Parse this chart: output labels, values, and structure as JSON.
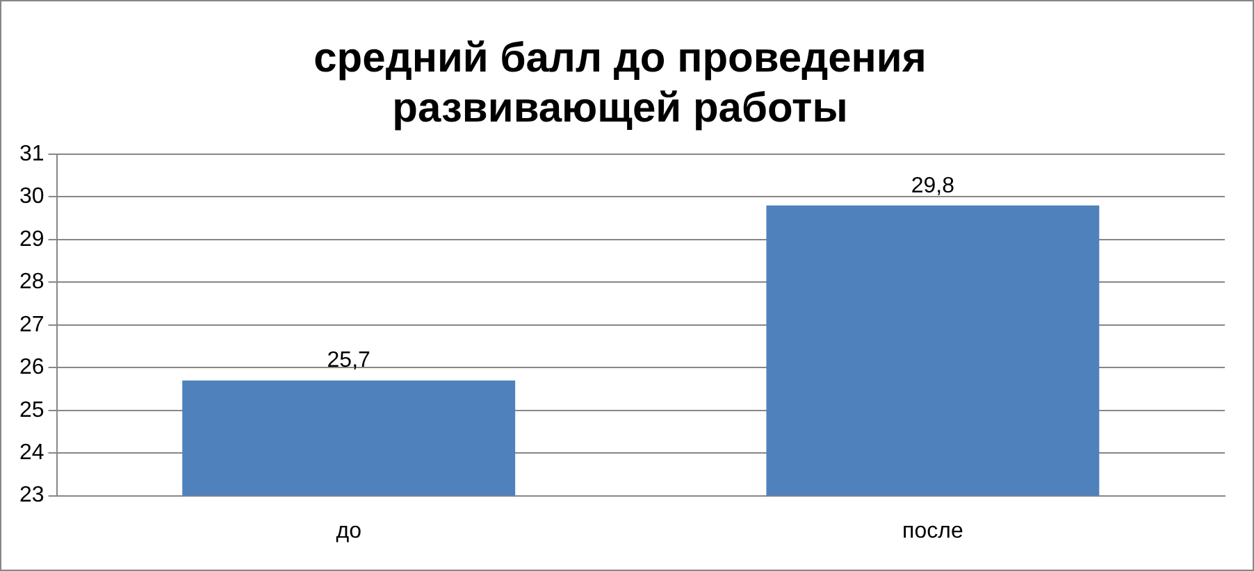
{
  "chart_data": {
    "type": "bar",
    "title": "средний балл до проведения развивающей работы",
    "categories": [
      "до",
      "после"
    ],
    "values": [
      25.7,
      29.8
    ],
    "value_labels": [
      "25,7",
      "29,8"
    ],
    "color": "#4f81bd",
    "ylim": [
      23,
      31
    ],
    "yticks": [
      23,
      24,
      25,
      26,
      27,
      28,
      29,
      30,
      31
    ],
    "grid": "y",
    "legend": false
  }
}
